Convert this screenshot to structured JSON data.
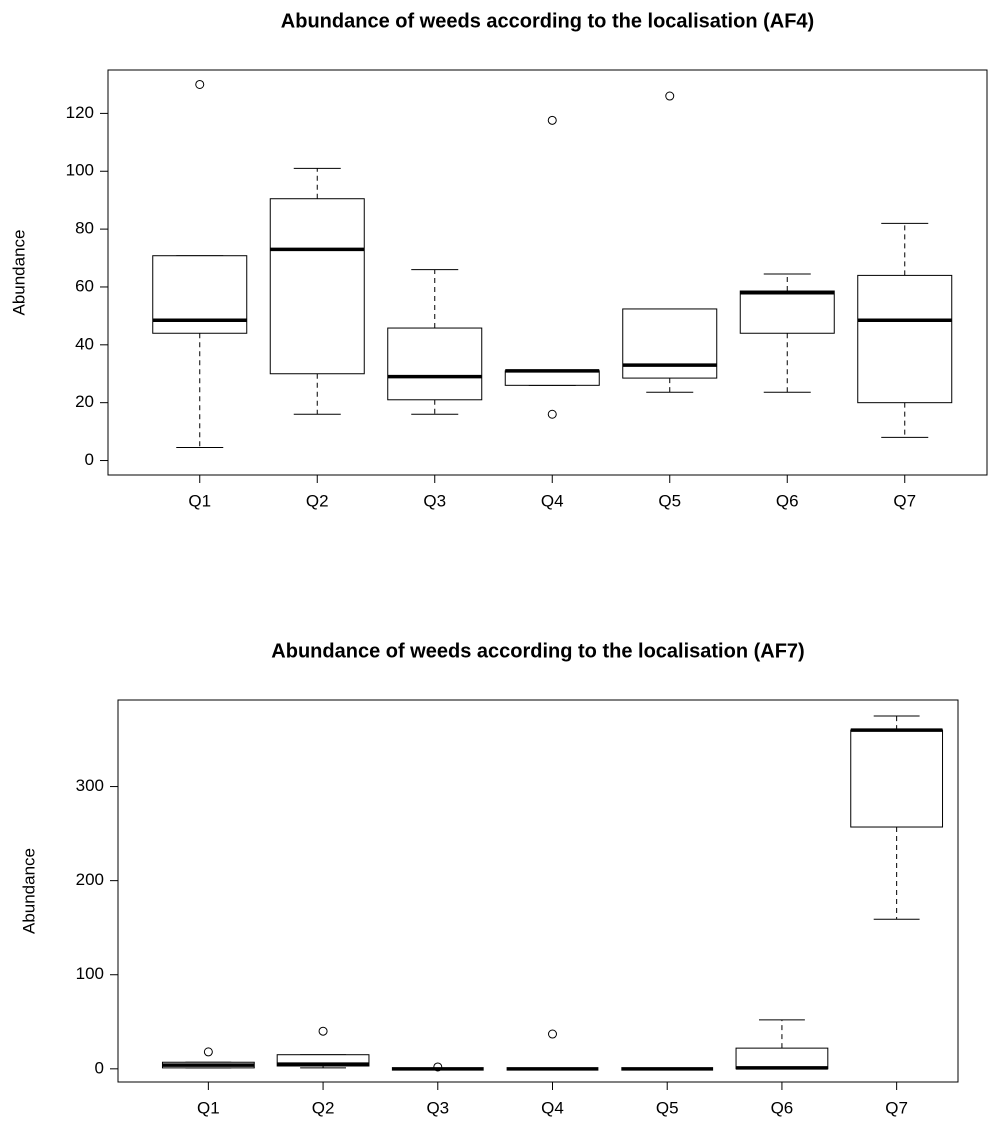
{
  "chart_data": [
    {
      "type": "box",
      "title": "Abundance of weeds according to the localisation (AF4)",
      "y_label": "Abundance",
      "categories": [
        "Q1",
        "Q2",
        "Q3",
        "Q4",
        "Q5",
        "Q6",
        "Q7"
      ],
      "min": [
        4.5,
        16,
        16,
        26,
        23.6,
        23.6,
        8
      ],
      "q1": [
        44,
        30,
        21,
        26,
        28.5,
        44,
        20
      ],
      "median": [
        48.5,
        73,
        29,
        31,
        33,
        58,
        48.5
      ],
      "q3": [
        70.8,
        90.5,
        45.8,
        31,
        52.4,
        58.6,
        64
      ],
      "max": [
        70.8,
        101,
        66,
        31,
        52.4,
        64.5,
        82
      ],
      "outliers": [
        [
          130
        ],
        [],
        [],
        [
          117.6,
          16
        ],
        [
          126
        ],
        [],
        []
      ],
      "color": "#000000",
      "ylim": [
        -5,
        135
      ],
      "yticks": [
        0,
        20,
        40,
        60,
        80,
        100,
        120
      ]
    },
    {
      "type": "box",
      "title": "Abundance of weeds according to the localisation (AF7)",
      "y_label": "Abundance",
      "categories": [
        "Q1",
        "Q2",
        "Q3",
        "Q4",
        "Q5",
        "Q6",
        "Q7"
      ],
      "min": [
        1,
        1,
        0,
        0,
        0,
        0,
        159
      ],
      "q1": [
        1,
        3,
        0,
        0,
        0,
        0,
        257
      ],
      "median": [
        4,
        5,
        0,
        0,
        0,
        1,
        360
      ],
      "q3": [
        7,
        15,
        0,
        0,
        0,
        22,
        360
      ],
      "max": [
        7,
        15,
        0,
        0,
        0,
        52,
        375
      ],
      "outliers": [
        [
          18
        ],
        [
          40
        ],
        [
          2
        ],
        [
          37
        ],
        [],
        [],
        []
      ],
      "color": "#000000",
      "ylim": [
        -14,
        392
      ],
      "yticks": [
        0,
        100,
        200,
        300
      ]
    }
  ]
}
